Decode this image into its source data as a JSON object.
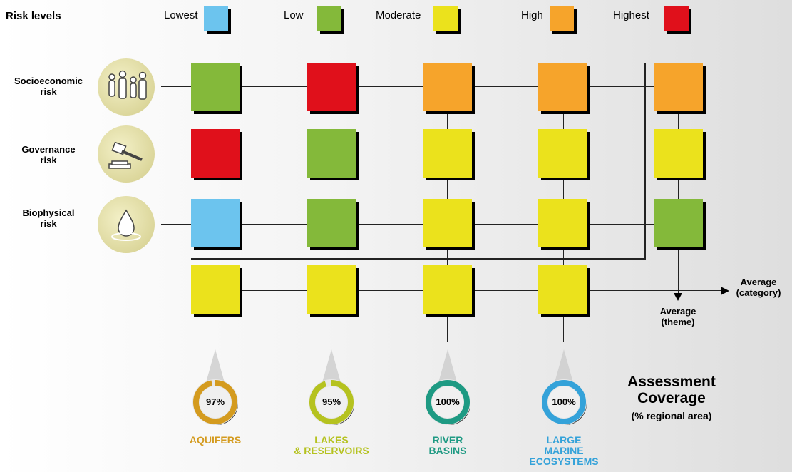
{
  "legend": {
    "title": "Risk levels",
    "items": [
      {
        "label": "Lowest",
        "color": "#6cc4ee"
      },
      {
        "label": "Low",
        "color": "#84b93a"
      },
      {
        "label": "Moderate",
        "color": "#ebe21c"
      },
      {
        "label": "High",
        "color": "#f6a42b"
      },
      {
        "label": "Highest",
        "color": "#e0101b"
      }
    ]
  },
  "rows": [
    {
      "line1": "Socioeconomic",
      "line2": "risk",
      "icon": "people-icon"
    },
    {
      "line1": "Governance",
      "line2": "risk",
      "icon": "gavel-icon"
    },
    {
      "line1": "Biophysical",
      "line2": "risk",
      "icon": "water-drop-icon"
    }
  ],
  "grid": {
    "levels": [
      [
        "Low",
        "Highest",
        "High",
        "High",
        "High"
      ],
      [
        "Highest",
        "Low",
        "Moderate",
        "Moderate",
        "Moderate"
      ],
      [
        "Lowest",
        "Low",
        "Moderate",
        "Moderate",
        "Low"
      ],
      [
        "Moderate",
        "Moderate",
        "Moderate",
        "Moderate",
        null
      ]
    ]
  },
  "categories": [
    {
      "line1": "AQUIFERS",
      "line2": "",
      "line3": "",
      "coverage": "97%",
      "coverage_value": 97,
      "color": "#d49b1f"
    },
    {
      "line1": "LAKES",
      "line2": "& RESERVOIRS",
      "line3": "",
      "coverage": "95%",
      "coverage_value": 95,
      "color": "#b5c21f"
    },
    {
      "line1": "RIVER",
      "line2": "BASINS",
      "line3": "",
      "coverage": "100%",
      "coverage_value": 100,
      "color": "#1e9a83"
    },
    {
      "line1": "LARGE",
      "line2": "MARINE",
      "line3": "ECOSYSTEMS",
      "coverage": "100%",
      "coverage_value": 100,
      "color": "#34a2d9"
    }
  ],
  "average_category": {
    "line1": "Average",
    "line2": "(category)"
  },
  "average_theme": {
    "line1": "Average",
    "line2": "(theme)"
  },
  "coverage": {
    "line1": "Assessment",
    "line2": "Coverage",
    "sub": "(% regional area)"
  }
}
